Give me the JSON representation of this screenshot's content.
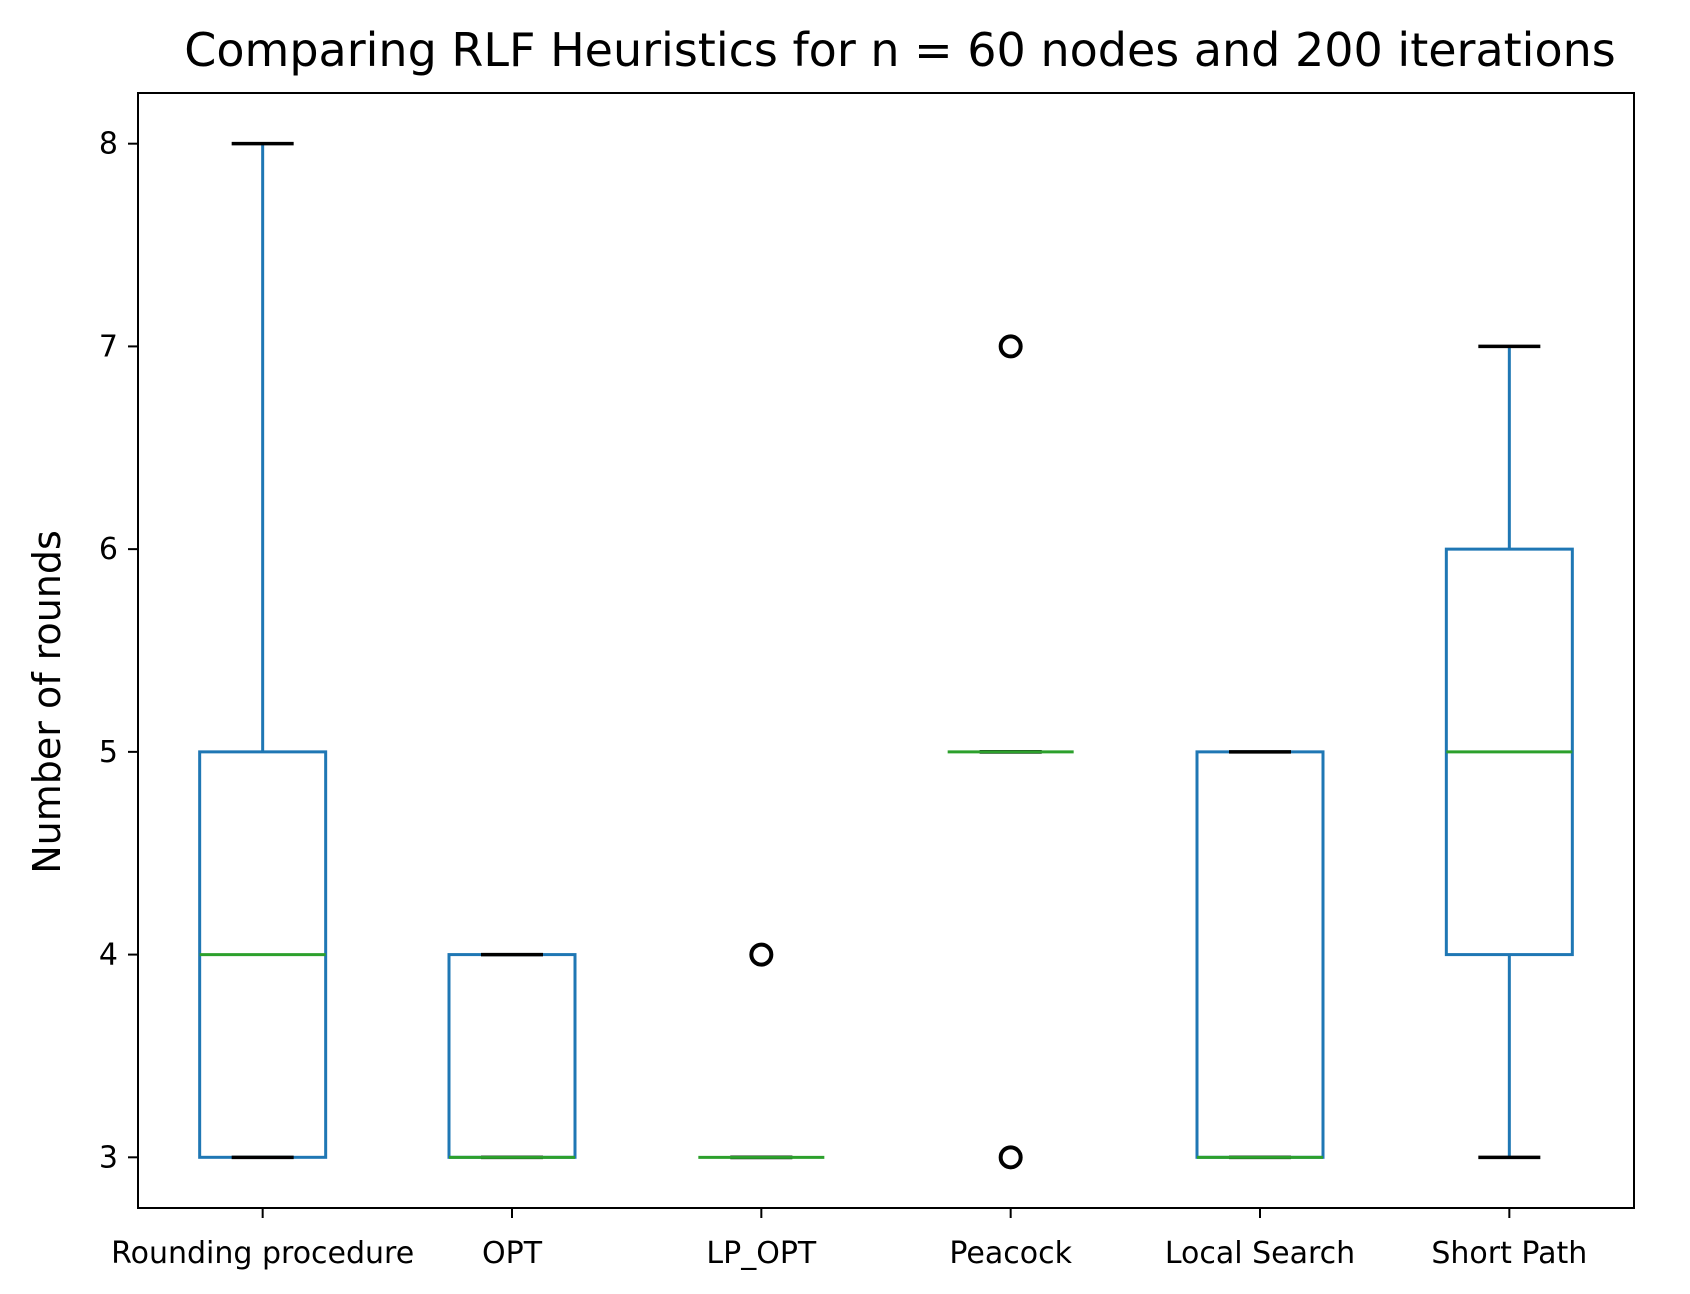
{
  "chart_data": {
    "type": "box",
    "title": "Comparing RLF Heuristics for n = 60 nodes and 200 iterations",
    "xlabel": "",
    "ylabel": "Number of rounds",
    "ylim": [
      2.75,
      8.25
    ],
    "yticks": [
      "3",
      "4",
      "5",
      "6",
      "7",
      "8"
    ],
    "grid": false,
    "categories": [
      "Rounding procedure",
      "OPT",
      "LP_OPT",
      "Peacock",
      "Local Search",
      "Short Path"
    ],
    "boxes": [
      {
        "whisker_low": 3,
        "q1": 3,
        "median": 4,
        "q3": 5,
        "whisker_high": 8,
        "outliers": []
      },
      {
        "whisker_low": 3,
        "q1": 3,
        "median": 3,
        "q3": 4,
        "whisker_high": 4,
        "outliers": []
      },
      {
        "whisker_low": 3,
        "q1": 3,
        "median": 3,
        "q3": 3,
        "whisker_high": 3,
        "outliers": [
          4
        ]
      },
      {
        "whisker_low": 5,
        "q1": 5,
        "median": 5,
        "q3": 5,
        "whisker_high": 5,
        "outliers": [
          3,
          7
        ]
      },
      {
        "whisker_low": 3,
        "q1": 3,
        "median": 3,
        "q3": 5,
        "whisker_high": 5,
        "outliers": []
      },
      {
        "whisker_low": 3,
        "q1": 4,
        "median": 5,
        "q3": 6,
        "whisker_high": 7,
        "outliers": []
      }
    ],
    "colors": {
      "box": "#1f77b4",
      "median": "#2ca02c",
      "cap": "#000000",
      "outlier": "#000000"
    }
  }
}
